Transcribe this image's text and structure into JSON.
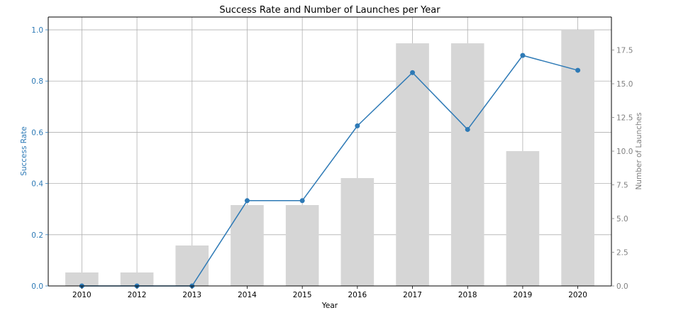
{
  "chart_data": {
    "type": "bar",
    "title": "Success Rate and Number of Launches per Year",
    "xlabel": "Year",
    "ylabel": "Success Rate",
    "y2label": "Number of Launches",
    "categories": [
      "2010",
      "2012",
      "2013",
      "2014",
      "2015",
      "2016",
      "2017",
      "2018",
      "2019",
      "2020"
    ],
    "series": [
      {
        "type": "bar",
        "axis": "right",
        "values": [
          1,
          1,
          3,
          6,
          6,
          8,
          18,
          18,
          10,
          19
        ],
        "color": "#d6d6d6"
      },
      {
        "type": "line",
        "axis": "left",
        "values": [
          0.0,
          0.0,
          0.0,
          0.333,
          0.333,
          0.625,
          0.833,
          0.611,
          0.9,
          0.842
        ],
        "color": "#2e7ab6",
        "marker": "circle"
      }
    ],
    "ylim": [
      0,
      1.05
    ],
    "y2lim": [
      0,
      19.95
    ],
    "yticks": [
      "0.0",
      "0.2",
      "0.4",
      "0.6",
      "0.8",
      "1.0"
    ],
    "y2ticks": [
      "0.0",
      "2.5",
      "5.0",
      "7.5",
      "10.0",
      "12.5",
      "15.0",
      "17.5"
    ],
    "grid": true,
    "colors": {
      "left_axis": "#2e7ab6",
      "right_axis": "#808080",
      "grid": "#b0b0b0",
      "axis_line": "#000000"
    }
  }
}
